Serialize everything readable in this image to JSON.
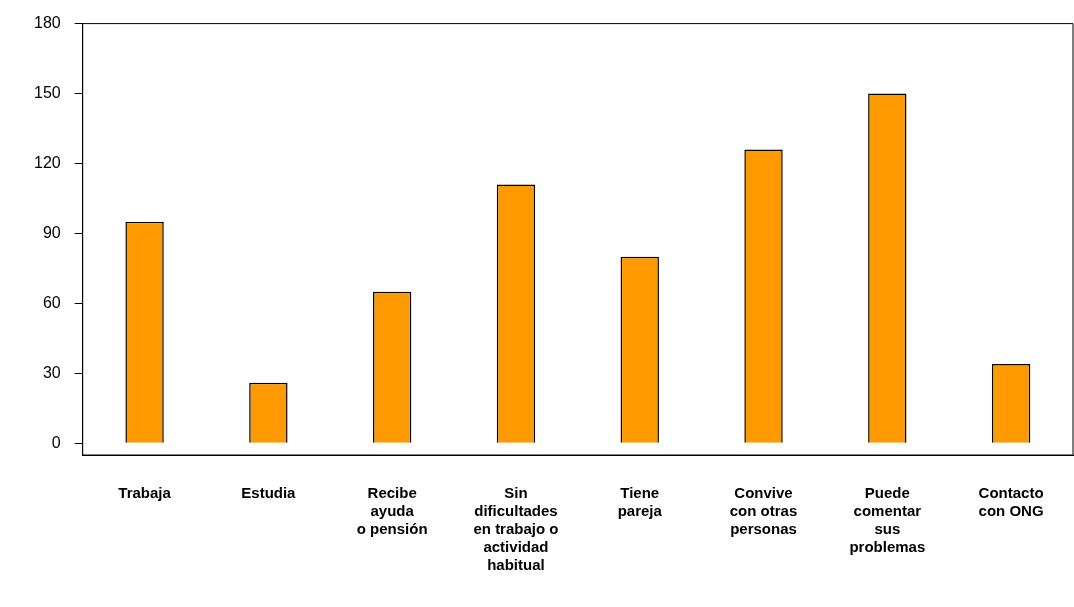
{
  "chart_data": {
    "type": "bar",
    "categories": [
      "Trabaja",
      "Estudia",
      "Recibe\nayuda\no pensión",
      "Sin\ndificultades\nen trabajo o\nactividad\nhabitual",
      "Tiene\npareja",
      "Convive\ncon otras\npersonas",
      "Puede\ncomentar\nsus\nproblemas",
      "Contacto\ncon ONG"
    ],
    "values": [
      95,
      26,
      65,
      111,
      80,
      126,
      150,
      34
    ],
    "color": "#ff9900",
    "ylim": [
      -5,
      180
    ],
    "yticks": [
      0,
      30,
      60,
      90,
      120,
      150,
      180
    ],
    "grid": false,
    "legend": false
  }
}
